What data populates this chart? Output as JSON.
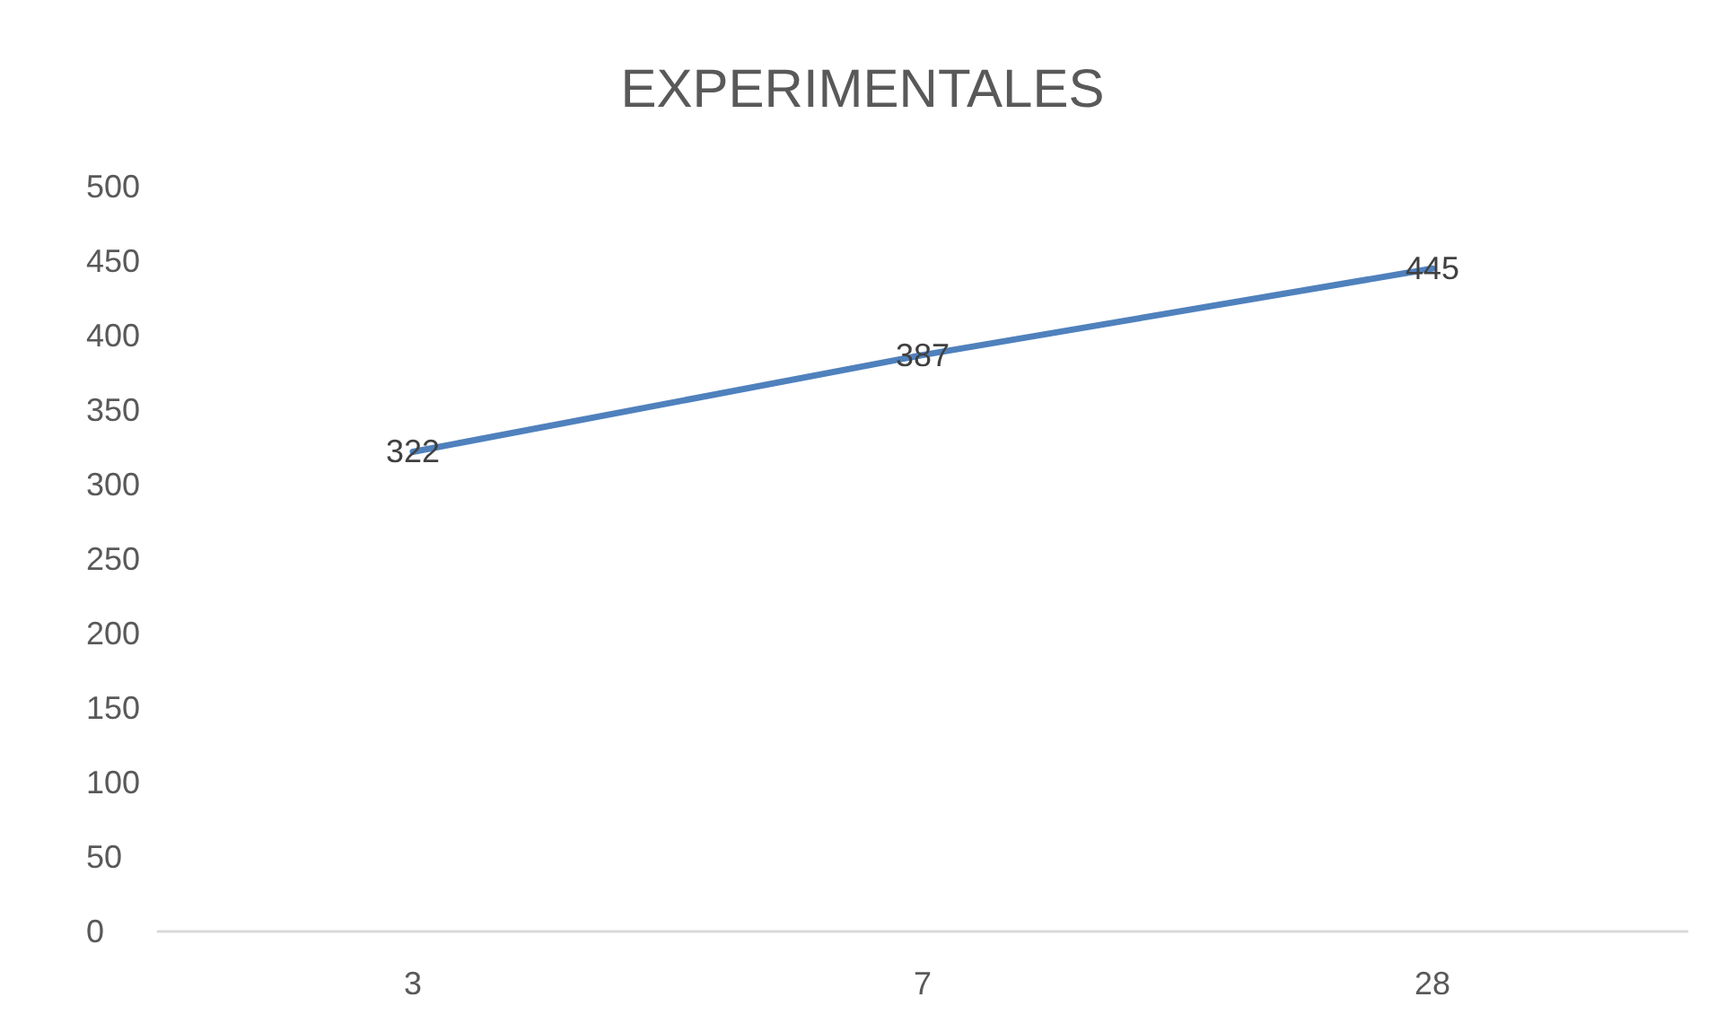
{
  "chart_data": {
    "type": "line",
    "title": "EXPERIMENTALES",
    "categories": [
      "3",
      "7",
      "28"
    ],
    "series": [
      {
        "color": "#4f81bd",
        "values": [
          322,
          387,
          445
        ]
      }
    ],
    "ylim": [
      0,
      500
    ],
    "yticks": [
      0,
      50,
      100,
      150,
      200,
      250,
      300,
      350,
      400,
      450,
      500
    ],
    "grid": false,
    "marker": "none",
    "line_style": "solid",
    "data_labels": true
  }
}
